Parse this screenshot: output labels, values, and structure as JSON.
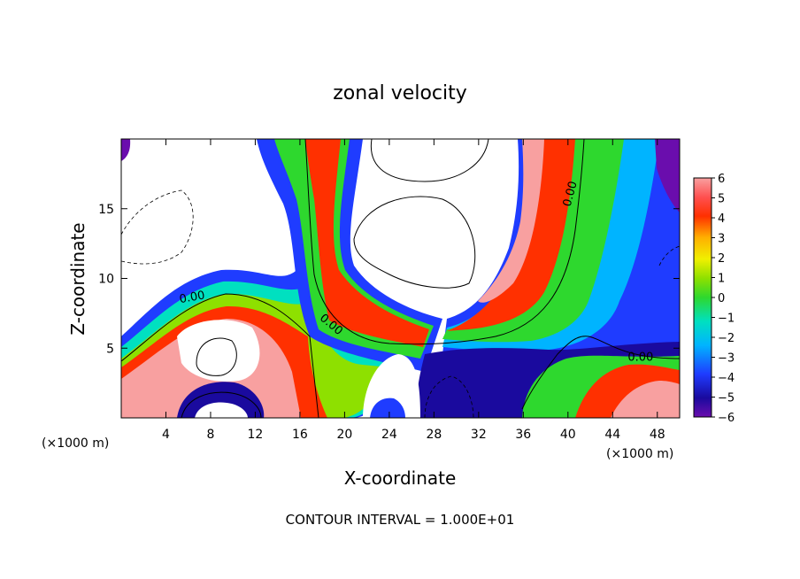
{
  "chart_data": {
    "type": "heatmap",
    "title": "zonal velocity",
    "xlabel": "X-coordinate",
    "ylabel": "Z-coordinate",
    "x_unit_left": "(×1000 m)",
    "x_unit_right": "(×1000 m)",
    "xlim": [
      0,
      50
    ],
    "ylim": [
      0,
      20
    ],
    "x_ticks": [
      4,
      8,
      12,
      16,
      20,
      24,
      28,
      32,
      36,
      40,
      44,
      48
    ],
    "x_tick_labels": [
      "4",
      "8",
      "12",
      "16",
      "20",
      "24",
      "28",
      "32",
      "36",
      "40",
      "44",
      "48"
    ],
    "y_ticks": [
      5,
      10,
      15
    ],
    "y_tick_labels": [
      "5",
      "10",
      "15"
    ],
    "colorbar": {
      "min": -6,
      "max": 6,
      "labels": [
        "6",
        "5",
        "4",
        "3",
        "2",
        "1",
        "0",
        "−1",
        "−2",
        "−3",
        "−4",
        "−5",
        "−6"
      ],
      "label_values": [
        6,
        5,
        4,
        3,
        2,
        1,
        0,
        -1,
        -2,
        -3,
        -4,
        -5,
        -6
      ]
    },
    "contour_labels": [
      {
        "text": "0.00",
        "x": 6.4,
        "y": 8.4,
        "angle": -10
      },
      {
        "text": "0.00",
        "x": 18.6,
        "y": 6.5,
        "angle": 40
      },
      {
        "text": "0.00",
        "x": 40.5,
        "y": 16.0,
        "angle": -75
      },
      {
        "text": "0.00",
        "x": 46.5,
        "y": 4.1,
        "angle": 0
      }
    ],
    "footer": "CONTOUR INTERVAL = 1.000E+01"
  }
}
